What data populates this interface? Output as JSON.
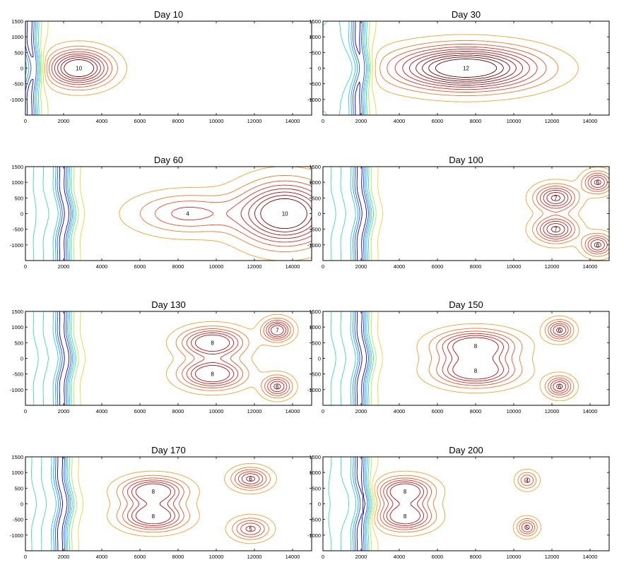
{
  "chart_data": [
    {
      "type": "contour",
      "title": "Day 10",
      "xlim": [
        0,
        15000
      ],
      "ylim": [
        -1500,
        1500
      ],
      "xticks": [
        0,
        2000,
        4000,
        6000,
        8000,
        10000,
        12000,
        14000
      ],
      "yticks": [
        -1000,
        -500,
        0,
        500,
        1000,
        1500
      ],
      "contour_levels": [
        -4,
        -3,
        -2,
        -1,
        0,
        1,
        2,
        3,
        4,
        5,
        6,
        7,
        8,
        9,
        10
      ],
      "features": [
        {
          "kind": "max",
          "x": 2800,
          "y": 0,
          "value": 10,
          "sx": 1500,
          "sy": 520
        },
        {
          "kind": "front",
          "x": 300,
          "value": -4
        }
      ]
    },
    {
      "type": "contour",
      "title": "Day 30",
      "xlim": [
        0,
        15000
      ],
      "ylim": [
        -1500,
        1500
      ],
      "xticks": [
        0,
        2000,
        4000,
        6000,
        8000,
        10000,
        12000,
        14000
      ],
      "yticks": [
        -1000,
        -500,
        0,
        500,
        1000,
        1500
      ],
      "contour_levels": [
        -4,
        -3,
        -2,
        -1,
        0,
        1,
        2,
        3,
        4,
        5,
        6,
        7,
        8,
        9,
        10,
        11,
        12
      ],
      "features": [
        {
          "kind": "max",
          "x": 7500,
          "y": 0,
          "value": 12,
          "sx": 3400,
          "sy": 620
        },
        {
          "kind": "front",
          "x": 1900,
          "value": -4
        }
      ]
    },
    {
      "type": "contour",
      "title": "Day 60",
      "xlim": [
        0,
        15000
      ],
      "ylim": [
        -1500,
        1500
      ],
      "xticks": [
        0,
        2000,
        4000,
        6000,
        8000,
        10000,
        12000,
        14000
      ],
      "yticks": [
        -1000,
        -500,
        0,
        500,
        1000,
        1500
      ],
      "contour_levels": [
        -4,
        -3,
        -2,
        -1,
        0,
        1,
        2,
        3,
        4,
        5,
        6,
        7,
        8,
        9,
        10
      ],
      "features": [
        {
          "kind": "max",
          "x": 13600,
          "y": 0,
          "value": 10,
          "sx": 2200,
          "sy": 900
        },
        {
          "kind": "max",
          "x": 8500,
          "y": 0,
          "value": 4,
          "sx": 2600,
          "sy": 600
        },
        {
          "kind": "front",
          "x": 2000,
          "value": -4
        }
      ]
    },
    {
      "type": "contour",
      "title": "Day 100",
      "xlim": [
        0,
        15000
      ],
      "ylim": [
        -1500,
        1500
      ],
      "xticks": [
        0,
        2000,
        4000,
        6000,
        8000,
        10000,
        12000,
        14000
      ],
      "yticks": [
        -1000,
        -500,
        0,
        500,
        1000,
        1500
      ],
      "contour_levels": [
        -4,
        -3,
        -2,
        -1,
        0,
        1,
        2,
        3,
        4,
        5,
        6,
        7,
        8,
        9,
        10
      ],
      "features": [
        {
          "kind": "max",
          "x": 12200,
          "y": 500,
          "value": 7,
          "sx": 1000,
          "sy": 380
        },
        {
          "kind": "max",
          "x": 12200,
          "y": -500,
          "value": 7,
          "sx": 1000,
          "sy": 380
        },
        {
          "kind": "max",
          "x": 14400,
          "y": 1000,
          "value": 6,
          "sx": 700,
          "sy": 320
        },
        {
          "kind": "max",
          "x": 14400,
          "y": -1000,
          "value": 6,
          "sx": 700,
          "sy": 320
        },
        {
          "kind": "front",
          "x": 2000,
          "value": -4
        }
      ]
    },
    {
      "type": "contour",
      "title": "Day 130",
      "xlim": [
        0,
        15000
      ],
      "ylim": [
        -1500,
        1500
      ],
      "xticks": [
        0,
        2000,
        4000,
        6000,
        8000,
        10000,
        12000,
        14000
      ],
      "yticks": [
        -1000,
        -500,
        0,
        500,
        1000,
        1500
      ],
      "contour_levels": [
        -4,
        -3,
        -2,
        -1,
        0,
        1,
        2,
        3,
        4,
        5,
        6,
        7,
        8
      ],
      "features": [
        {
          "kind": "max",
          "x": 9800,
          "y": 500,
          "value": 8,
          "sx": 1500,
          "sy": 420
        },
        {
          "kind": "max",
          "x": 9800,
          "y": -500,
          "value": 8,
          "sx": 1500,
          "sy": 420
        },
        {
          "kind": "max",
          "x": 13200,
          "y": 900,
          "value": 7,
          "sx": 700,
          "sy": 320
        },
        {
          "kind": "max",
          "x": 13200,
          "y": -900,
          "value": 6,
          "sx": 700,
          "sy": 320
        },
        {
          "kind": "front",
          "x": 2000,
          "value": -4
        }
      ]
    },
    {
      "type": "contour",
      "title": "Day 150",
      "xlim": [
        0,
        15000
      ],
      "ylim": [
        -1500,
        1500
      ],
      "xticks": [
        0,
        2000,
        4000,
        6000,
        8000,
        10000,
        12000,
        14000
      ],
      "yticks": [
        -1000,
        -500,
        0,
        500,
        1000,
        1500
      ],
      "contour_levels": [
        -4,
        -3,
        -2,
        -1,
        0,
        1,
        2,
        3,
        4,
        5,
        6,
        7,
        8
      ],
      "features": [
        {
          "kind": "max",
          "x": 8000,
          "y": 400,
          "value": 8,
          "sx": 1900,
          "sy": 440
        },
        {
          "kind": "max",
          "x": 8000,
          "y": -400,
          "value": 8,
          "sx": 1900,
          "sy": 440
        },
        {
          "kind": "max",
          "x": 12400,
          "y": 900,
          "value": 6,
          "sx": 650,
          "sy": 300
        },
        {
          "kind": "max",
          "x": 12400,
          "y": -900,
          "value": 6,
          "sx": 650,
          "sy": 300
        },
        {
          "kind": "front",
          "x": 2000,
          "value": -4
        }
      ]
    },
    {
      "type": "contour",
      "title": "Day 170",
      "xlim": [
        0,
        15000
      ],
      "ylim": [
        -1500,
        1500
      ],
      "xticks": [
        0,
        2000,
        4000,
        6000,
        8000,
        10000,
        12000,
        14000
      ],
      "yticks": [
        -1000,
        -500,
        0,
        500,
        1000,
        1500
      ],
      "contour_levels": [
        -4,
        -3,
        -2,
        -1,
        0,
        1,
        2,
        3,
        4,
        5,
        6,
        7,
        8
      ],
      "features": [
        {
          "kind": "max",
          "x": 6700,
          "y": 400,
          "value": 8,
          "sx": 1500,
          "sy": 400
        },
        {
          "kind": "max",
          "x": 6700,
          "y": -400,
          "value": 8,
          "sx": 1500,
          "sy": 400
        },
        {
          "kind": "max",
          "x": 11800,
          "y": 800,
          "value": 6,
          "sx": 900,
          "sy": 320
        },
        {
          "kind": "max",
          "x": 11800,
          "y": -800,
          "value": 5,
          "sx": 900,
          "sy": 320
        },
        {
          "kind": "front",
          "x": 1900,
          "value": -4
        }
      ]
    },
    {
      "type": "contour",
      "title": "Day 200",
      "xlim": [
        0,
        15000
      ],
      "ylim": [
        -1500,
        1500
      ],
      "xticks": [
        0,
        2000,
        4000,
        6000,
        8000,
        10000,
        12000,
        14000
      ],
      "yticks": [
        -1000,
        -500,
        0,
        500,
        1000,
        1500
      ],
      "contour_levels": [
        -4,
        -3,
        -2,
        -1,
        0,
        1,
        2,
        3,
        4,
        5,
        6,
        7,
        8
      ],
      "features": [
        {
          "kind": "max",
          "x": 4300,
          "y": 400,
          "value": 8,
          "sx": 1300,
          "sy": 400
        },
        {
          "kind": "max",
          "x": 4300,
          "y": -400,
          "value": 8,
          "sx": 1300,
          "sy": 400
        },
        {
          "kind": "max",
          "x": 10700,
          "y": 750,
          "value": 4,
          "sx": 500,
          "sy": 260
        },
        {
          "kind": "max",
          "x": 10700,
          "y": -750,
          "value": 5,
          "sx": 500,
          "sy": 260
        },
        {
          "kind": "front",
          "x": 2000,
          "value": -4
        }
      ]
    }
  ],
  "colors": {
    "-4": "#0000c8",
    "-3": "#1f4cff",
    "-2": "#2a98ff",
    "-1": "#1fd0e0",
    "0": "#38e0a0",
    "1": "#b4e84a",
    "2": "#f2d23a",
    "3": "#f8a02e",
    "4": "#f5782a",
    "5": "#ec5024",
    "6": "#dc2c20",
    "7": "#c81818",
    "8": "#b01010",
    "9": "#980808",
    "10": "#800000",
    "11": "#700000",
    "12": "#600000"
  }
}
